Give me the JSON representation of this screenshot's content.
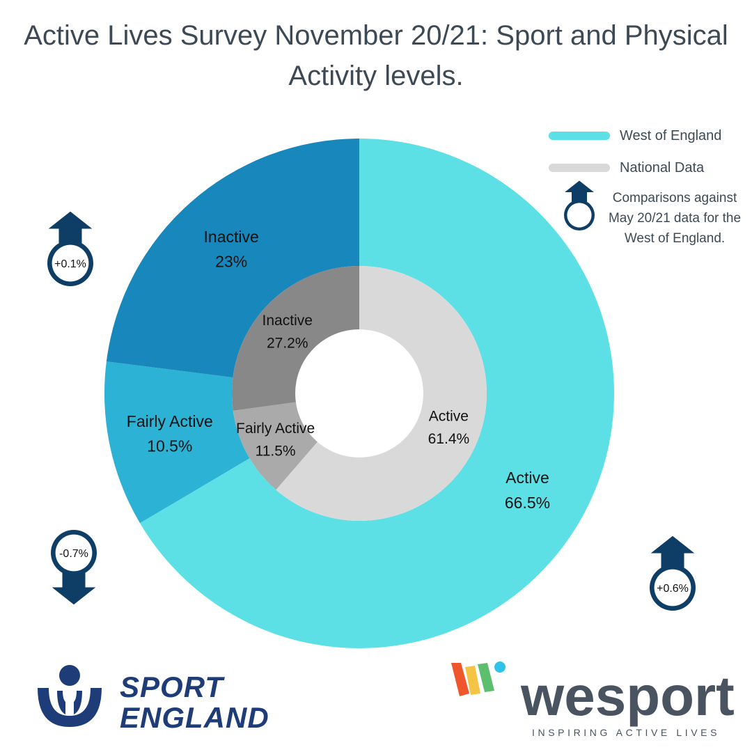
{
  "title": "Active Lives  Survey November 20/21: Sport and Physical Activity levels.",
  "colors": {
    "west_active": "#5ce0e6",
    "west_fairly_active": "#2cb2d4",
    "west_inactive": "#1887bb",
    "national_active": "#d9d9d9",
    "national_fairly_active": "#aaaaaa",
    "national_inactive": "#888888",
    "badge": "#0e3e66",
    "text": "#3d4a55"
  },
  "legend": {
    "west": "West of England",
    "national": "National Data",
    "comparison_note": "Comparisons against May 20/21 data for the West of England.",
    "comparison_icon": "up-arrow-circle-icon"
  },
  "chart_data": {
    "type": "pie",
    "rings": [
      {
        "name": "West of England",
        "ring": "outer",
        "categories": [
          "Active",
          "Fairly Active",
          "Inactive"
        ],
        "values": [
          66.5,
          10.5,
          23
        ],
        "labels": [
          "66.5%",
          "10.5%",
          "23%"
        ],
        "colors": [
          "#5ce0e6",
          "#2cb2d4",
          "#1887bb"
        ]
      },
      {
        "name": "National Data",
        "ring": "inner",
        "categories": [
          "Active",
          "Fairly Active",
          "Inactive"
        ],
        "values": [
          61.4,
          11.5,
          27.2
        ],
        "labels": [
          "61.4%",
          "11.5%",
          "27.2%"
        ],
        "colors": [
          "#d9d9d9",
          "#aaaaaa",
          "#888888"
        ]
      }
    ],
    "annotations": [
      {
        "category": "Inactive",
        "text": "+0.1%",
        "direction": "up"
      },
      {
        "category": "Fairly Active",
        "text": "-0.7%",
        "direction": "down"
      },
      {
        "category": "Active",
        "text": "+0.6%",
        "direction": "up"
      }
    ]
  },
  "logos": {
    "sport_england": {
      "line1": "SPORT",
      "line2": "ENGLAND",
      "color": "#1e3c78"
    },
    "wesport": {
      "word": "wesport",
      "tagline": "INSPIRING ACTIVE LIVES",
      "color": "#4a5460"
    }
  }
}
